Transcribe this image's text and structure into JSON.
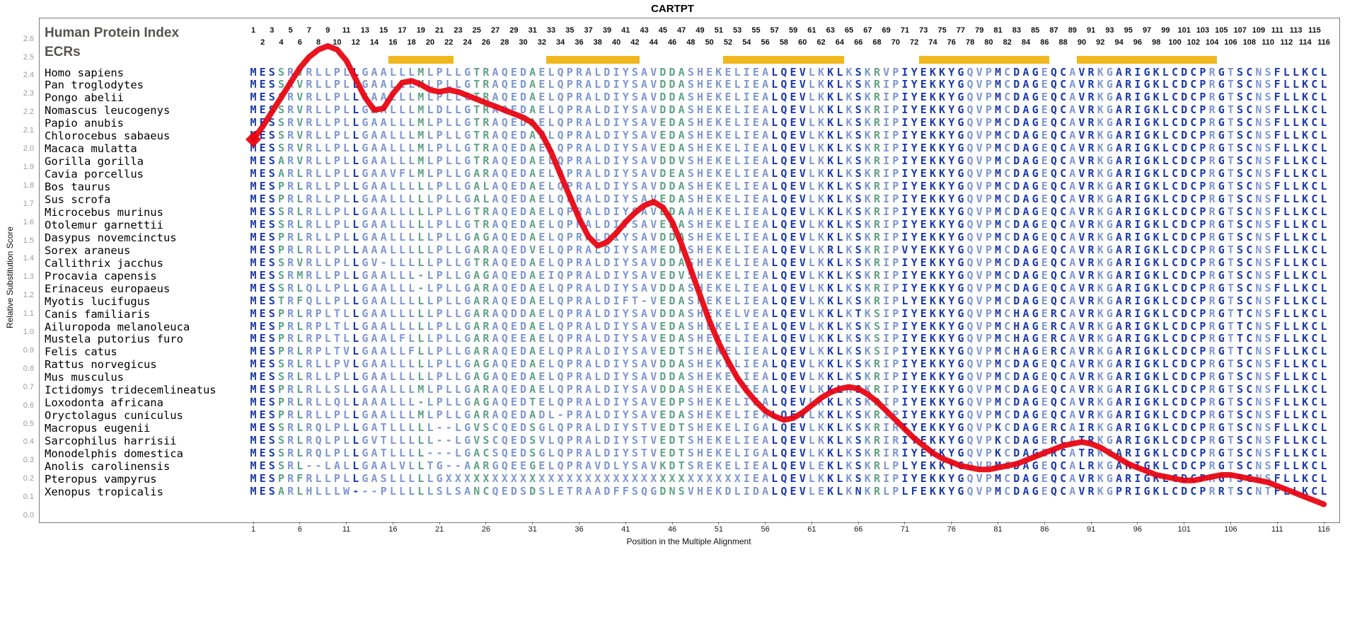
{
  "title": "CARTPT",
  "labels": {
    "human_protein_index": "Human Protein Index",
    "ecrs": "ECRs"
  },
  "x_axis": {
    "title": "Position in the Multiple Alignment",
    "ticks": [
      1,
      6,
      11,
      16,
      21,
      26,
      31,
      36,
      41,
      46,
      51,
      56,
      61,
      66,
      71,
      76,
      81,
      86,
      91,
      96,
      101,
      106,
      111,
      116
    ]
  },
  "y_axis": {
    "title": "Relative Substitution Score",
    "ticks": [
      "0.0",
      "0.1",
      "0.2",
      "0.3",
      "0.4",
      "0.5",
      "0.6",
      "0.7",
      "0.8",
      "0.9",
      "1.0",
      "1.1",
      "1.2",
      "1.3",
      "1.4",
      "1.5",
      "1.6",
      "1.7",
      "1.8",
      "1.9",
      "2.0",
      "2.1",
      "2.2",
      "2.3",
      "2.4",
      "2.5",
      "2.6"
    ]
  },
  "position_numbers": {
    "odd": [
      1,
      3,
      5,
      7,
      9,
      11,
      13,
      15,
      17,
      19,
      21,
      23,
      25,
      27,
      29,
      31,
      33,
      35,
      37,
      39,
      41,
      43,
      45,
      47,
      49,
      51,
      53,
      55,
      57,
      59,
      61,
      63,
      65,
      67,
      69,
      71,
      73,
      75,
      77,
      79,
      81,
      83,
      85,
      87,
      89,
      91,
      93,
      95,
      97,
      99,
      101,
      103,
      105,
      107,
      109,
      111,
      113,
      115
    ],
    "even": [
      2,
      4,
      6,
      8,
      10,
      12,
      14,
      16,
      18,
      20,
      22,
      24,
      26,
      28,
      30,
      32,
      34,
      36,
      38,
      40,
      42,
      44,
      46,
      48,
      50,
      52,
      54,
      56,
      58,
      60,
      62,
      64,
      66,
      68,
      70,
      72,
      74,
      76,
      78,
      80,
      82,
      84,
      86,
      88,
      90,
      92,
      94,
      96,
      98,
      100,
      102,
      104,
      106,
      108,
      110,
      112,
      114,
      116
    ]
  },
  "ecr_regions": [
    {
      "start": 16,
      "end": 22
    },
    {
      "start": 33,
      "end": 42
    },
    {
      "start": 52,
      "end": 64
    },
    {
      "start": 73,
      "end": 86
    },
    {
      "start": 90,
      "end": 104
    }
  ],
  "colors": {
    "conserved": "#1c3aa9",
    "moderate": "#7d97cf",
    "variable": "#5fa285",
    "ecr": "#f0b81c",
    "line": "#e8000d",
    "frame": "#7a7a7a",
    "label_gray": "#57534e",
    "ytick_gray": "#9b9b9b"
  },
  "column_conservation": "DDDGMGMMMMMDMMMMMMGMMMMMGGMMMMGMMMMMMMMMMMMMGGGMMMMMMMMMDDDDMMDDMDMGMMDDDDDDDMMMDMDDDMDDMDDMMDDDDDDDDDDMDMDDMMDDDDD",
  "species": [
    {
      "name": "Homo sapiens",
      "sequence": "MESSRVRLLPLLGAALLLMLPLLGTRAQEDAELQPRALDIYSAVDDASHEKELIEALQEVLKKLKSKRVPIYEKKYGQVPMCDAGEQCAVRKGARIGKLCDCPRGTSCNSFLLKCL"
    },
    {
      "name": "Pan troglodytes",
      "sequence": "MESSRVRLLPLLGAALLLMLPLLGTRAQEDAELQPRALDIYSAVDDASHEKELIEALQEVLKKLKSKRIPIYEKKYGQVPMCDAGEQCAVRKGARIGKLCDCPRGTSCNSFLLKCL"
    },
    {
      "name": "Pongo abelii",
      "sequence": "MESSRVRLLPLLGAALLLMLPLLGTRAQEDAELQPRALDIYSAVDDASHEKELIEALQEVLKKLKSKRIPIYEKKYGQVPMCDAGEQCAVRKGARIGKLCDCPRGTSCNSFLLKCL"
    },
    {
      "name": "Nomascus leucogenys",
      "sequence": "MESSRVRLLPLLGAALLLMLDLLGTRAQEDAELQPRALDIYSAVDDASHEKELIEALQEVLKKLKSKRIPIYEKKYGQVPMCDAGEQCAVRKGARIGKLCDCPRGTSCNSFLLKCL"
    },
    {
      "name": "Papio anubis",
      "sequence": "MESSRVRLLPLLGAALLLMLPLLGTRAQEDAELQPRALDIYSAVEDASHEKELIEALQEVLKKLKSKRIPIYEKKYGQVPMCDAGEQCAVRKGARIGKLCDCPRGTSCNSFLLKCL"
    },
    {
      "name": "Chlorocebus sabaeus",
      "sequence": "MESSRVRLLPLLGAALLLMLPLLGTRAQEDAELQPRALDIYSAVEDASHEKELIEALQEVLKKLKSKRIPIYEKKYGQVPMCDAGEQCAVRKGARIGKLCDCPRGTSCNSFLLKCL"
    },
    {
      "name": "Macaca mulatta",
      "sequence": "MESSRVRLLPLLGAALLLMLPLLGTRAQEDAELQPRALDIYSAVEDASHEKELIEALQEVLKKLKSKRIPIYEKKYGQVPMCDAGEQCAVRKGARIGKLCDCPRGTSCNSFLLKCL"
    },
    {
      "name": "Gorilla gorilla",
      "sequence": "MESARVRLLPLLGAALLLMLPLLGTRAQEDAELQPRALDIYSAVDDVSHEKELIEALQEVLKKLKSKRIPIYEKKYGQVPMCDAGEQCAVRKGARIGKLCDCPRGTSCNSFLLKCL"
    },
    {
      "name": "Cavia porcellus",
      "sequence": "MESARLRLLPLLGAAVFLMLPLLGARAQEDAELQPRALDIYSAVDEASHEKELIEALQEVLKKLKSKRIPIYEKKYGQVPMCDAGEQCAVRKGARIGKLCDCPRGTSCNSFLLKCL"
    },
    {
      "name": "Bos taurus",
      "sequence": "MESPRLRLLPLLGAALLLLLPLLGALAQEDAELQPRALDIYSAVDDASHEKELIEALQEVLKKLKSKRIPIYEKKYGQVPMCDAGEQCAVRKGARIGKLCDCPRGTSCNSFLLKCL"
    },
    {
      "name": "Sus scrofa",
      "sequence": "MESPRLRLLPLLGAALLLLLPLLGALAQEDAELQPRALDIYSAVEDASHEKELIEALQEVLKKLKSKRIPIYEKKYGQVPMCDAGEQCAVRKGARIGKLCDCPRGTSCNSFLLKCL"
    },
    {
      "name": "Microcebus murinus",
      "sequence": "MESSRLRLLPLLGAALLLLLPLLGTRAQEDAELQPRALDIYSAVEDAAHEKELIEALQEVLKKLKSKRIPIYEKKYGQVPMCDAGEQCAVRKGARIGKLCDCPRGTSCNSFLLKCL"
    },
    {
      "name": "Otolemur garnettii",
      "sequence": "MESSRLRLLPLLGAALLLLLPLLGTRAQEDAELQPRALDIYSAVEDASHEKELIEALQEVLKKLKSKRIPIYEKKYGQVPMCDAGEQCAVRKGARIGKLCDCPRGTSCNSFLLKCL"
    },
    {
      "name": "Dasypus novemcinctus",
      "sequence": "MESPRLRLLPLLGAALLLLLPLLGAGAQEDAELQPRALDIYSAVDDASHEKELIEALQEVLKKLKSKRIPIYEKKYGQVPMCDAGEQCAVRKGARIGKLCDCPRGTSCNSFLLKCL"
    },
    {
      "name": "Sorex araneus",
      "sequence": "MESPRLRLLPLLAAALLLLLPLLGARAQEDVELQPRALDIYSAMEDPSHEKELIEALQEVLKRLKSKRIPVYEKKYGQVPMCDAGEQCAVRKGARIGKLCDCPRGTSCNSFLLKCL"
    },
    {
      "name": "Callithrix jacchus",
      "sequence": "MESSRVRLLPLLGV-LLLLLPLLGTRAQEDAELQPRALDIYSAVDDASHEKELIEALQEVLKKLKSKRIPIYEKKYGQVPMCDAGEQCAVRKGARIGKLCDCPRGTSCNSFLLKCL"
    },
    {
      "name": "Procavia capensis",
      "sequence": "MESSRMRLLPLLGAALLL-LPLLGAGAQEDAEIQPRALDIYSAVEDVSHEKELIEALQEVLKKLKSKRIPIYEKKYGQVPMCDAGEQCAVRKGARIGKLCDCPRGTSCNSFLLKCL"
    },
    {
      "name": "Erinaceus europaeus",
      "sequence": "MESSRLQLLPLLGAALLL-LPLLGARAQEDAELQPRALDIYSAVDDASHEKELIEALQEVLKKLKSKRIPIYEKKYGQVPMCDAGEQCAVRKGARIGKLCDCPRGTSCNSFLLKCL"
    },
    {
      "name": "Myotis lucifugus",
      "sequence": "MESTRFQLLPLLGAALLLLLPLLGARAQEDAELQPRALDIFT-VEDASHEKELIEALQEVLKKLKSKRIPLYEKKYGQVPMCDAGEQCAVRKGARIGKLCDCPRGTSCNSFLLKCL"
    },
    {
      "name": "Canis familiaris",
      "sequence": "MESPRLRPLTLLGAALLLLLPLLGARAQDDAELQPRALDIYSAVDDASHEKELVEALQEVLKKLKTKSIPIYEKKYGQVPMCHAGERCAVRKGARIGKLCDCPRGTTCNSFLLKCL"
    },
    {
      "name": "Ailuropoda melanoleuca",
      "sequence": "MESPRLRPLTLLGAALLLLLPLLGARAQEDAELQPRALDIYSAVEDASHEKELIEALQEVLKKLKSKSIPIYEKKYGQVPMCHAGERCAVRKGARIGKLCDCPRGTTCNSFLLKCL"
    },
    {
      "name": "Mustela putorius furo",
      "sequence": "MESPRLRPLTLLGAALFLLLPLLGARAQEEAELQPRALDIYSAVEDASHEKELIEALQEVLKKLKSKSIPIYEKKYGQVPMCHAGERCAVRKGARIGKLCDCPRGTTCNSFLLKCL"
    },
    {
      "name": "Felis catus",
      "sequence": "MESPRLRPLTVLGAALLFLLPLLGARAQEDAELQPRALDIYSAVEDTSHEKELIEALQEVLKKLKSKSIPIYEKKYGQVPMCHAGERCAVRKGARIGKLCDCPRGTTCNSFLLKCL"
    },
    {
      "name": "Rattus norvegicus",
      "sequence": "MESSRLRLLPVLGAALLLLLPLLGAGAQEDAELQPRALDIYSAVDDASHEKELIEALQEVLKKLKSKRIPIYEKKYGQVPMCDAGEQCAVRKGARIGKLCDCPRGTSCNSFLLKCL"
    },
    {
      "name": "Mus musculus",
      "sequence": "MESSRLRLLPLLGAALLLLLPLLGAGAQEDAELQPRALDIYSAVDDASHEKELIEALQEVLKKLKSKRIPIYEKKYGQVPMCDAGEQCAVRKGARIGKLCDCPRGTSCNSFLLKCL"
    },
    {
      "name": "Ictidomys tridecemlineatus",
      "sequence": "MESPRLRLLSLLGAALLLMLPLLGARAQEDAELQPRALDIYSAVDDASHEKELIEALQEVLKKLKSKRIPIYEKKYGQVPMCDAGEQCAVRKGARIGKLCDCPRGTSCNSFLLKCL"
    },
    {
      "name": "Loxodonta africana",
      "sequence": "MESPRLRLLQLLAAALLL-LPLLGAGAQEDTELQPRALDIYSAVEDPSHEKELIEALQEVLKKLKSKRIPIYEKKYGQVPMCDAGEQCAVRKGARIGKLCDCPRGTSCNSFLLKCL"
    },
    {
      "name": "Oryctolagus cuniculus",
      "sequence": "MESPRLRLLPLLGAALLLMLPLLGARAQEDADL-PRALDIYSAVEDASHEKELIEALQEVLKKLKSKRIPIYEKKYGQVPMCDAGEQCAVRKGARIGKLCDCPRGTSCNSFLLKCL"
    },
    {
      "name": "Macropus eugenii",
      "sequence": "MESSRLRQLPLLGATLLLLL--LGVSCQEDSGLQPRALDIYSTVEDTSHEKELIGALQEVLKKLKSKRIRIYEKKYGQVPKCDAGERCAIRKGARIGKLCDCPRGTSCNSFLLKCL"
    },
    {
      "name": "Sarcophilus harrisii",
      "sequence": "MESSRLRQLPLLGVTLLLLL--LGVSCQEDSVLQPRALDIYSTVEDTSHEKELIEALQEVLKKLKSKRIRIYEKKYGQVPKCDAGERCATRKGARIGKLCDCPRGTSCNSFLLKCL"
    },
    {
      "name": "Monodelphis domestica",
      "sequence": "MESSRLRQLPLLGATLLLL---LGACSQEDSGLQPRALDIYSTVEDTSHEKELIGALQEVLKKLKSKRIRIYEKKYGQVPKCDAGERCATRKGARIGKLCDCPRGTSCNSFLLKCL"
    },
    {
      "name": "Anolis carolinensis",
      "sequence": "MESSRL--LALLGAALVLLTG--AARGQEEGELQPRAVDLYSAVKDTSREKELIEALQEVLEKLKSKRLPLYEKKYGQVPMCDAGEQCALRKGARIGKLCDCPRGTSCNSFLLKCL"
    },
    {
      "name": "Pteropus vampyrus",
      "sequence": "MESPRFRLLPLLGASLLLLLGXXXXXXXXXXXXXXXXXXXXXXXXXXXXXXXXIEALQEVLKKLKSKRIPIYEKKYGQVPMCDAGEQCAVRKGARIGKLCDCPRGTSCNSFLLKCL"
    },
    {
      "name": "Xenopus tropicalis",
      "sequence": "MESARLHLLLW---PLLLLLSLSANCQEDSDSLETRAADFFSQGDNSVHEKDLIDALQEVLEKLKNKRLPLFEKKYGQVPMCDAGEQCAVRKGPRIGKLCDCPRRTSCNTFLLKCL"
    }
  ],
  "chart_data": {
    "type": "line",
    "title": "CARTPT",
    "xlabel": "Position in the Multiple Alignment",
    "ylabel": "Relative Substitution Score",
    "x_min": 1,
    "x_max": 116,
    "ylim": [
      0,
      2.6
    ],
    "line_color": "#e8000d",
    "marker": "diamond-at-start",
    "scores": [
      2.05,
      2.12,
      2.2,
      2.28,
      2.36,
      2.44,
      2.5,
      2.54,
      2.56,
      2.54,
      2.48,
      2.38,
      2.28,
      2.21,
      2.22,
      2.3,
      2.36,
      2.37,
      2.35,
      2.32,
      2.31,
      2.32,
      2.31,
      2.29,
      2.27,
      2.25,
      2.23,
      2.21,
      2.19,
      2.17,
      2.14,
      2.08,
      1.98,
      1.86,
      1.74,
      1.62,
      1.52,
      1.47,
      1.49,
      1.54,
      1.6,
      1.65,
      1.69,
      1.71,
      1.68,
      1.6,
      1.48,
      1.34,
      1.2,
      1.06,
      0.94,
      0.84,
      0.75,
      0.68,
      0.62,
      0.57,
      0.54,
      0.52,
      0.53,
      0.56,
      0.6,
      0.64,
      0.67,
      0.69,
      0.7,
      0.69,
      0.66,
      0.62,
      0.57,
      0.52,
      0.47,
      0.42,
      0.38,
      0.34,
      0.31,
      0.29,
      0.27,
      0.26,
      0.25,
      0.25,
      0.26,
      0.27,
      0.28,
      0.3,
      0.32,
      0.34,
      0.36,
      0.38,
      0.39,
      0.4,
      0.39,
      0.37,
      0.34,
      0.31,
      0.28,
      0.26,
      0.24,
      0.22,
      0.21,
      0.2,
      0.19,
      0.19,
      0.2,
      0.21,
      0.22,
      0.22,
      0.21,
      0.2,
      0.19,
      0.18,
      0.16,
      0.14,
      0.12,
      0.1,
      0.08,
      0.06
    ]
  }
}
